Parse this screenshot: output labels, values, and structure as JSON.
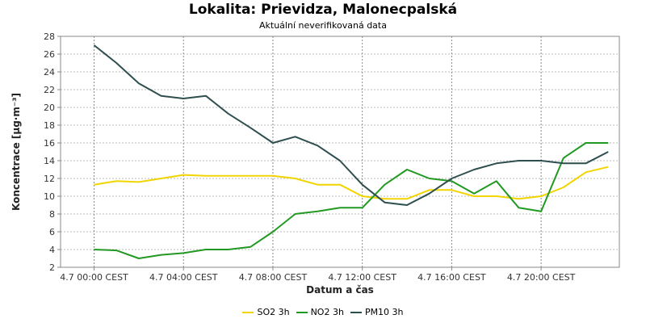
{
  "chart_data": {
    "type": "line",
    "title": "Lokalita: Prievidza, Malonecpalská",
    "subtitle": "Aktuální neverifikovaná data",
    "xlabel": "Datum a čas",
    "ylabel": "Koncentrace [µg·m⁻³]",
    "ylim": [
      2,
      28
    ],
    "yticks": [
      2,
      4,
      6,
      8,
      10,
      12,
      14,
      16,
      18,
      20,
      22,
      24,
      26,
      28
    ],
    "xlim": [
      -1.5,
      23.5
    ],
    "xticks": [
      {
        "hour": 0,
        "label": "4.7 00:00 CEST"
      },
      {
        "hour": 4,
        "label": "4.7 04:00 CEST"
      },
      {
        "hour": 8,
        "label": "4.7 08:00 CEST"
      },
      {
        "hour": 12,
        "label": "4.7 12:00 CEST"
      },
      {
        "hour": 16,
        "label": "4.7 16:00 CEST"
      },
      {
        "hour": 20,
        "label": "4.7 20:00 CEST"
      }
    ],
    "grid": true,
    "legend_position": "bottom",
    "x_hours": [
      0,
      1,
      2,
      3,
      4,
      5,
      6,
      7,
      8,
      9,
      10,
      11,
      12,
      13,
      14,
      15,
      16,
      17,
      18,
      19,
      20,
      21,
      22,
      23
    ],
    "series": [
      {
        "name": "SO2 3h",
        "color": "#f2d400",
        "values": [
          11.3,
          11.7,
          11.6,
          12.0,
          12.4,
          12.3,
          12.3,
          12.3,
          12.3,
          12.0,
          11.3,
          11.3,
          10.0,
          9.7,
          9.7,
          10.7,
          10.7,
          10.0,
          10.0,
          9.7,
          10.0,
          11.0,
          12.7,
          13.3
        ]
      },
      {
        "name": "NO2 3h",
        "color": "#229922",
        "values": [
          4.0,
          3.9,
          3.0,
          3.4,
          3.6,
          4.0,
          4.0,
          4.3,
          6.0,
          8.0,
          8.3,
          8.7,
          8.7,
          11.3,
          13.0,
          12.0,
          11.7,
          10.3,
          11.7,
          8.7,
          8.3,
          14.3,
          16.0,
          16.0
        ]
      },
      {
        "name": "PM10 3h",
        "color": "#2f4f4f",
        "values": [
          27.0,
          25.0,
          22.7,
          21.3,
          21.0,
          21.3,
          19.3,
          17.7,
          16.0,
          16.7,
          15.7,
          14.0,
          11.3,
          9.3,
          9.0,
          10.3,
          12.0,
          13.0,
          13.7,
          14.0,
          14.0,
          13.7,
          13.7,
          15.0
        ]
      }
    ]
  }
}
